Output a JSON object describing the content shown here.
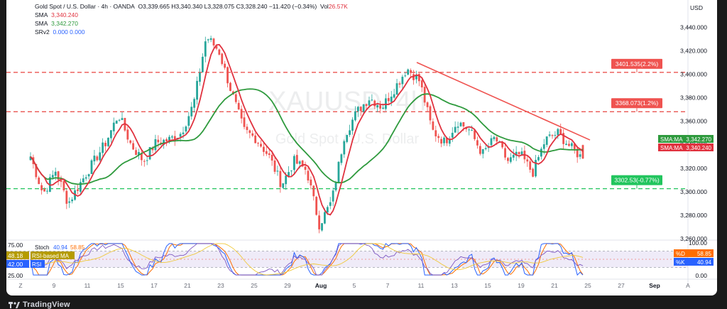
{
  "legend": {
    "title": "Gold Spot / U.S. Dollar · 4h · OANDA",
    "ohlc": "O3,339.665  H3,340.340  L3,328.075  C3,328.240  −11.420 (−0.34%)",
    "vol_label": "Vol",
    "vol": "26.57K",
    "sma1_label": "SMA",
    "sma1_value": "3,340.240",
    "sma2_label": "SMA",
    "sma2_value": "3,342.270",
    "srv2_label": "SRv2",
    "srv2_values": "0.000  0.000"
  },
  "currency": "USD",
  "watermark": {
    "symbol": "XAUUSD, 4h",
    "name": "Gold Spot / U.S. Dollar"
  },
  "stoch_legend": {
    "label": "Stoch",
    "k": "40.94",
    "d": "58.85"
  },
  "footer_brand": "TradingView",
  "colors": {
    "up": "#26a69a",
    "down": "#ef5350",
    "sma_fast": "#e0313e",
    "sma_slow": "#2e9a3d",
    "level": "#e8433f",
    "support": "#22c55e"
  },
  "chart_data": {
    "type": "candlestick",
    "timeframe": "4h",
    "x_ticks": [
      "Z",
      "9",
      "11",
      "15",
      "17",
      "21",
      "23",
      "25",
      "29",
      "Aug",
      "5",
      "7",
      "11",
      "13",
      "15",
      "19",
      "21",
      "25",
      "27",
      "Sep",
      "A"
    ],
    "y_ticks": [
      "3,440.000",
      "3,420.000",
      "3,400.000",
      "3,380.000",
      "3,360.000",
      "3,340.000",
      "3,320.000",
      "3,300.000",
      "3,280.000",
      "3,260.000"
    ],
    "ylim": [
      3260,
      3445
    ],
    "anchor_closes": [
      3330,
      3298,
      3318,
      3290,
      3308,
      3325,
      3342,
      3366,
      3340,
      3326,
      3342,
      3344,
      3350,
      3375,
      3432,
      3420,
      3385,
      3352,
      3345,
      3330,
      3306,
      3326,
      3318,
      3272,
      3292,
      3348,
      3368,
      3380,
      3372,
      3388,
      3405,
      3394,
      3352,
      3342,
      3360,
      3352,
      3332,
      3346,
      3326,
      3332,
      3316,
      3344,
      3350,
      3338,
      3328
    ],
    "levels": [
      {
        "name": "resistance-1",
        "price": 3401.535,
        "label": "3401.535(2.2%)"
      },
      {
        "name": "resistance-2",
        "price": 3368.073,
        "label": "3368.073(1.2%)"
      },
      {
        "name": "support-1",
        "price": 3302.53,
        "label": "3302.53(-0.77%)"
      }
    ],
    "trendline": {
      "from": {
        "x": "Aug 9",
        "y": 3410
      },
      "to": {
        "x": "Aug 23",
        "y": 3344
      }
    },
    "sma_tags": [
      {
        "label": "SMA:MA",
        "value": "3,342.270",
        "color": "#2e9a3d"
      },
      {
        "label": "SMA:MA",
        "value": "3,340.240",
        "color": "#e0313e"
      }
    ],
    "oscillator": {
      "y_ticks": [
        "100.00",
        "0.00"
      ],
      "left_tags": [
        {
          "value": "75.00",
          "color": ""
        },
        {
          "value": "48.18",
          "color": "#b59b00"
        },
        {
          "value": "42.00",
          "color": "#2962ff"
        },
        {
          "value": "25.00",
          "color": ""
        }
      ],
      "left_labels": [
        "RSI-based MA",
        "RSI"
      ],
      "right_tags": [
        {
          "label": "%D",
          "value": "58.85",
          "color": "#ff6d00"
        },
        {
          "label": "%K",
          "value": "40.94",
          "color": "#2962ff"
        }
      ]
    }
  }
}
